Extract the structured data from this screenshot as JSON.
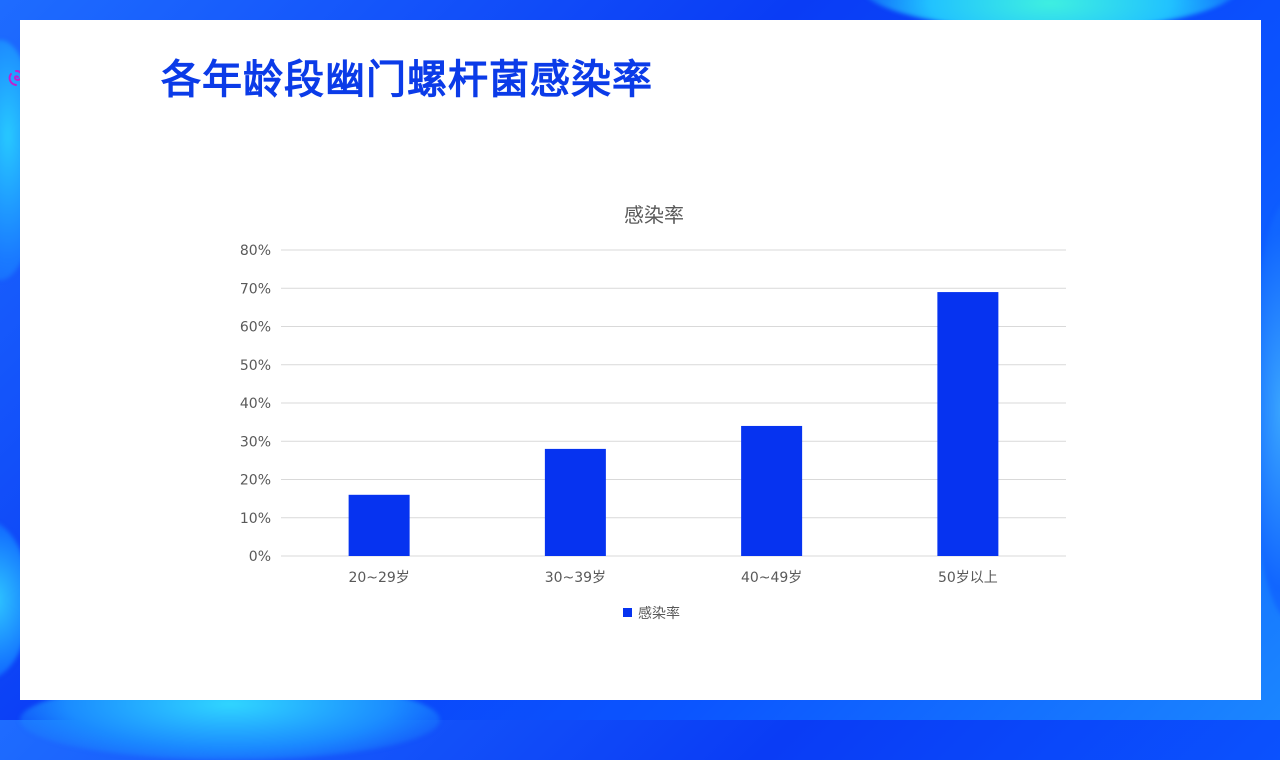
{
  "slide": {
    "title": "各年龄段幽门螺杆菌感染率"
  },
  "colors": {
    "bar": "#0633f0",
    "title": "#0b3be8",
    "grid": "#d9d9d9",
    "axis_text": "#595959"
  },
  "icons": {
    "corner_decoration": "swirl-icon"
  },
  "chart_data": {
    "type": "bar",
    "title": "感染率",
    "categories": [
      "20~29岁",
      "30~39岁",
      "40~49岁",
      "50岁以上"
    ],
    "series": [
      {
        "name": "感染率",
        "values": [
          16,
          28,
          34,
          69
        ]
      }
    ],
    "ylim": [
      0,
      80
    ],
    "yticks": [
      0,
      10,
      20,
      30,
      40,
      50,
      60,
      70,
      80
    ],
    "y_tick_labels": [
      "0%",
      "10%",
      "20%",
      "30%",
      "40%",
      "50%",
      "60%",
      "70%",
      "80%"
    ],
    "xlabel": "",
    "ylabel": "",
    "grid": true,
    "legend": "bottom"
  }
}
